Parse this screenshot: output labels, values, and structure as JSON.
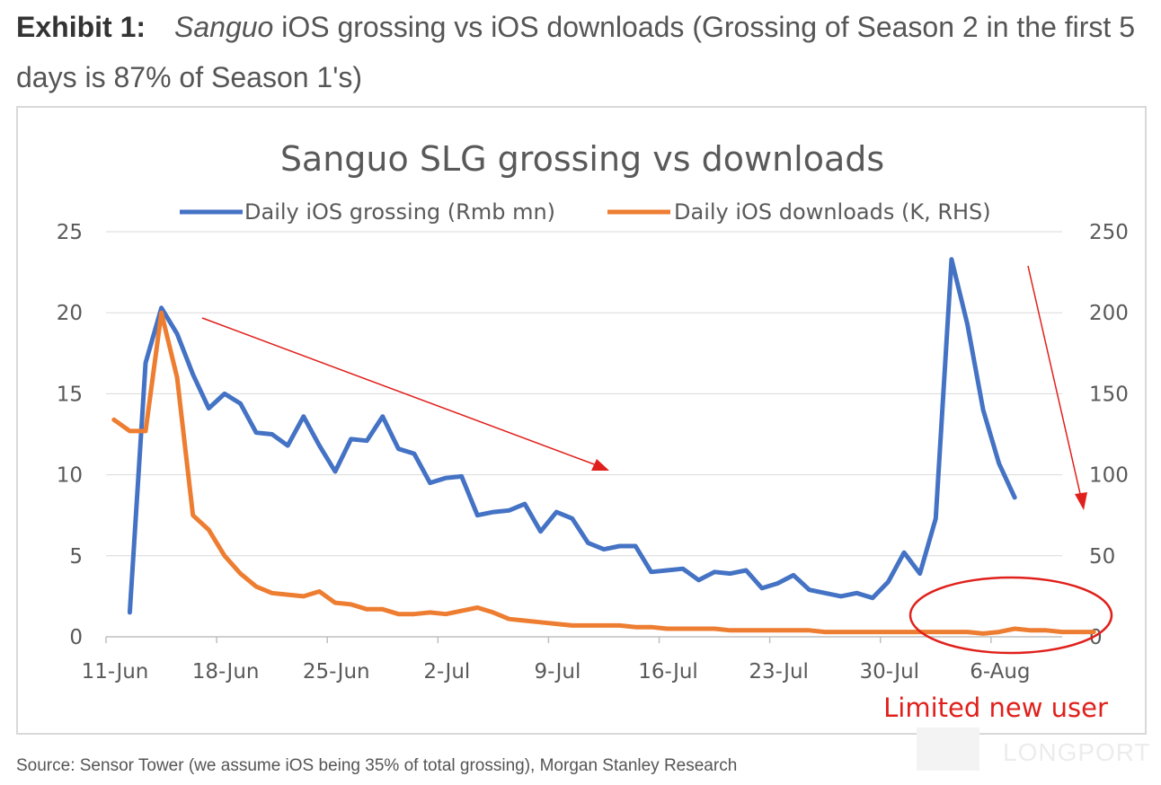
{
  "exhibit": {
    "label": "Exhibit 1:",
    "title_italic": "Sanguo",
    "title_rest": " iOS grossing vs iOS downloads (Grossing of Season 2 in the first 5 days is 87% of Season 1's)"
  },
  "source": "Source: Sensor Tower (we assume iOS being 35% of total grossing), Morgan Stanley Research",
  "watermark": "LONGPORT",
  "colors": {
    "grossing": "#4472C4",
    "downloads": "#ED7D31",
    "annotation": "#E0201B",
    "grid": "#d9d9d9",
    "axis_text": "#595959"
  },
  "chart_data": {
    "type": "line",
    "title": "Sanguo SLG grossing vs downloads",
    "x_labels": [
      "11-Jun",
      "18-Jun",
      "25-Jun",
      "2-Jul",
      "9-Jul",
      "16-Jul",
      "23-Jul",
      "30-Jul",
      "6-Aug"
    ],
    "x_label_day_index": [
      0,
      7,
      14,
      21,
      28,
      35,
      42,
      49,
      56
    ],
    "y_left": {
      "range": [
        0,
        25
      ],
      "ticks": [
        "0",
        "5",
        "10",
        "15",
        "20",
        "25"
      ]
    },
    "y_right": {
      "range": [
        0,
        250
      ],
      "ticks": [
        "0",
        "50",
        "100",
        "150",
        "200",
        "250"
      ]
    },
    "grid": true,
    "legend_position": "top",
    "series": [
      {
        "name": "Daily iOS grossing (Rmb mn)",
        "axis": "left",
        "start_day": 1.5,
        "values": [
          1.5,
          16.9,
          20.3,
          18.7,
          16.2,
          14.1,
          15.0,
          14.4,
          12.6,
          12.5,
          11.8,
          13.6,
          11.8,
          10.2,
          12.2,
          12.1,
          13.6,
          11.6,
          11.3,
          9.5,
          9.8,
          9.9,
          7.5,
          7.7,
          7.8,
          8.2,
          6.5,
          7.7,
          7.3,
          5.8,
          5.4,
          5.6,
          5.6,
          4.0,
          4.1,
          4.2,
          3.5,
          4.0,
          3.9,
          4.1,
          3.0,
          3.3,
          3.8,
          2.9,
          2.7,
          2.5,
          2.7,
          2.4,
          3.4,
          5.2,
          3.9,
          7.3,
          23.3,
          19.3,
          14.0,
          10.7,
          8.6
        ]
      },
      {
        "name": "Daily iOS downloads (K, RHS)",
        "axis": "right",
        "start_day": 0.5,
        "values": [
          134,
          127,
          127,
          200,
          160,
          75,
          66,
          50,
          39,
          31,
          27,
          26,
          25,
          28,
          21,
          20,
          17,
          17,
          14,
          14,
          15,
          14,
          16,
          18,
          15,
          11,
          10,
          9,
          8,
          7,
          7,
          7,
          7,
          6,
          6,
          5,
          5,
          5,
          5,
          4,
          4,
          4,
          4,
          4,
          4,
          3,
          3,
          3,
          3,
          3,
          3,
          3,
          3,
          3,
          3,
          2,
          3,
          5,
          4,
          4,
          3,
          3,
          3
        ]
      }
    ],
    "annotations": {
      "label": "Limited new user"
    }
  }
}
